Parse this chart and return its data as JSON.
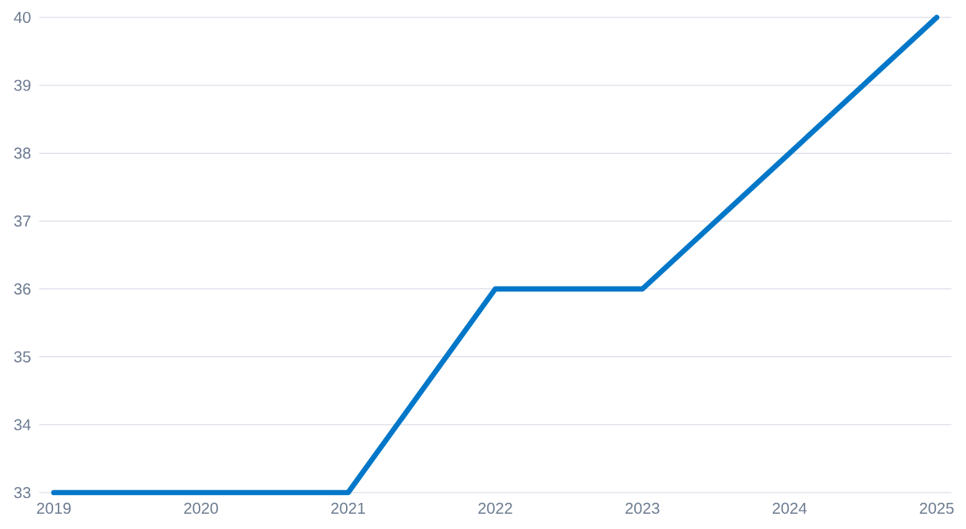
{
  "chart_data": {
    "type": "line",
    "categories": [
      "2019",
      "2020",
      "2021",
      "2022",
      "2023",
      "2024",
      "2025"
    ],
    "series": [
      {
        "color": "#0077c8",
        "values": [
          33,
          33,
          33,
          36,
          36,
          38,
          40
        ]
      }
    ],
    "ylim": [
      33,
      40
    ],
    "yticks": [
      33,
      34,
      35,
      36,
      37,
      38,
      39,
      40
    ],
    "grid": "y",
    "marker": "none",
    "line_style": "solid"
  }
}
